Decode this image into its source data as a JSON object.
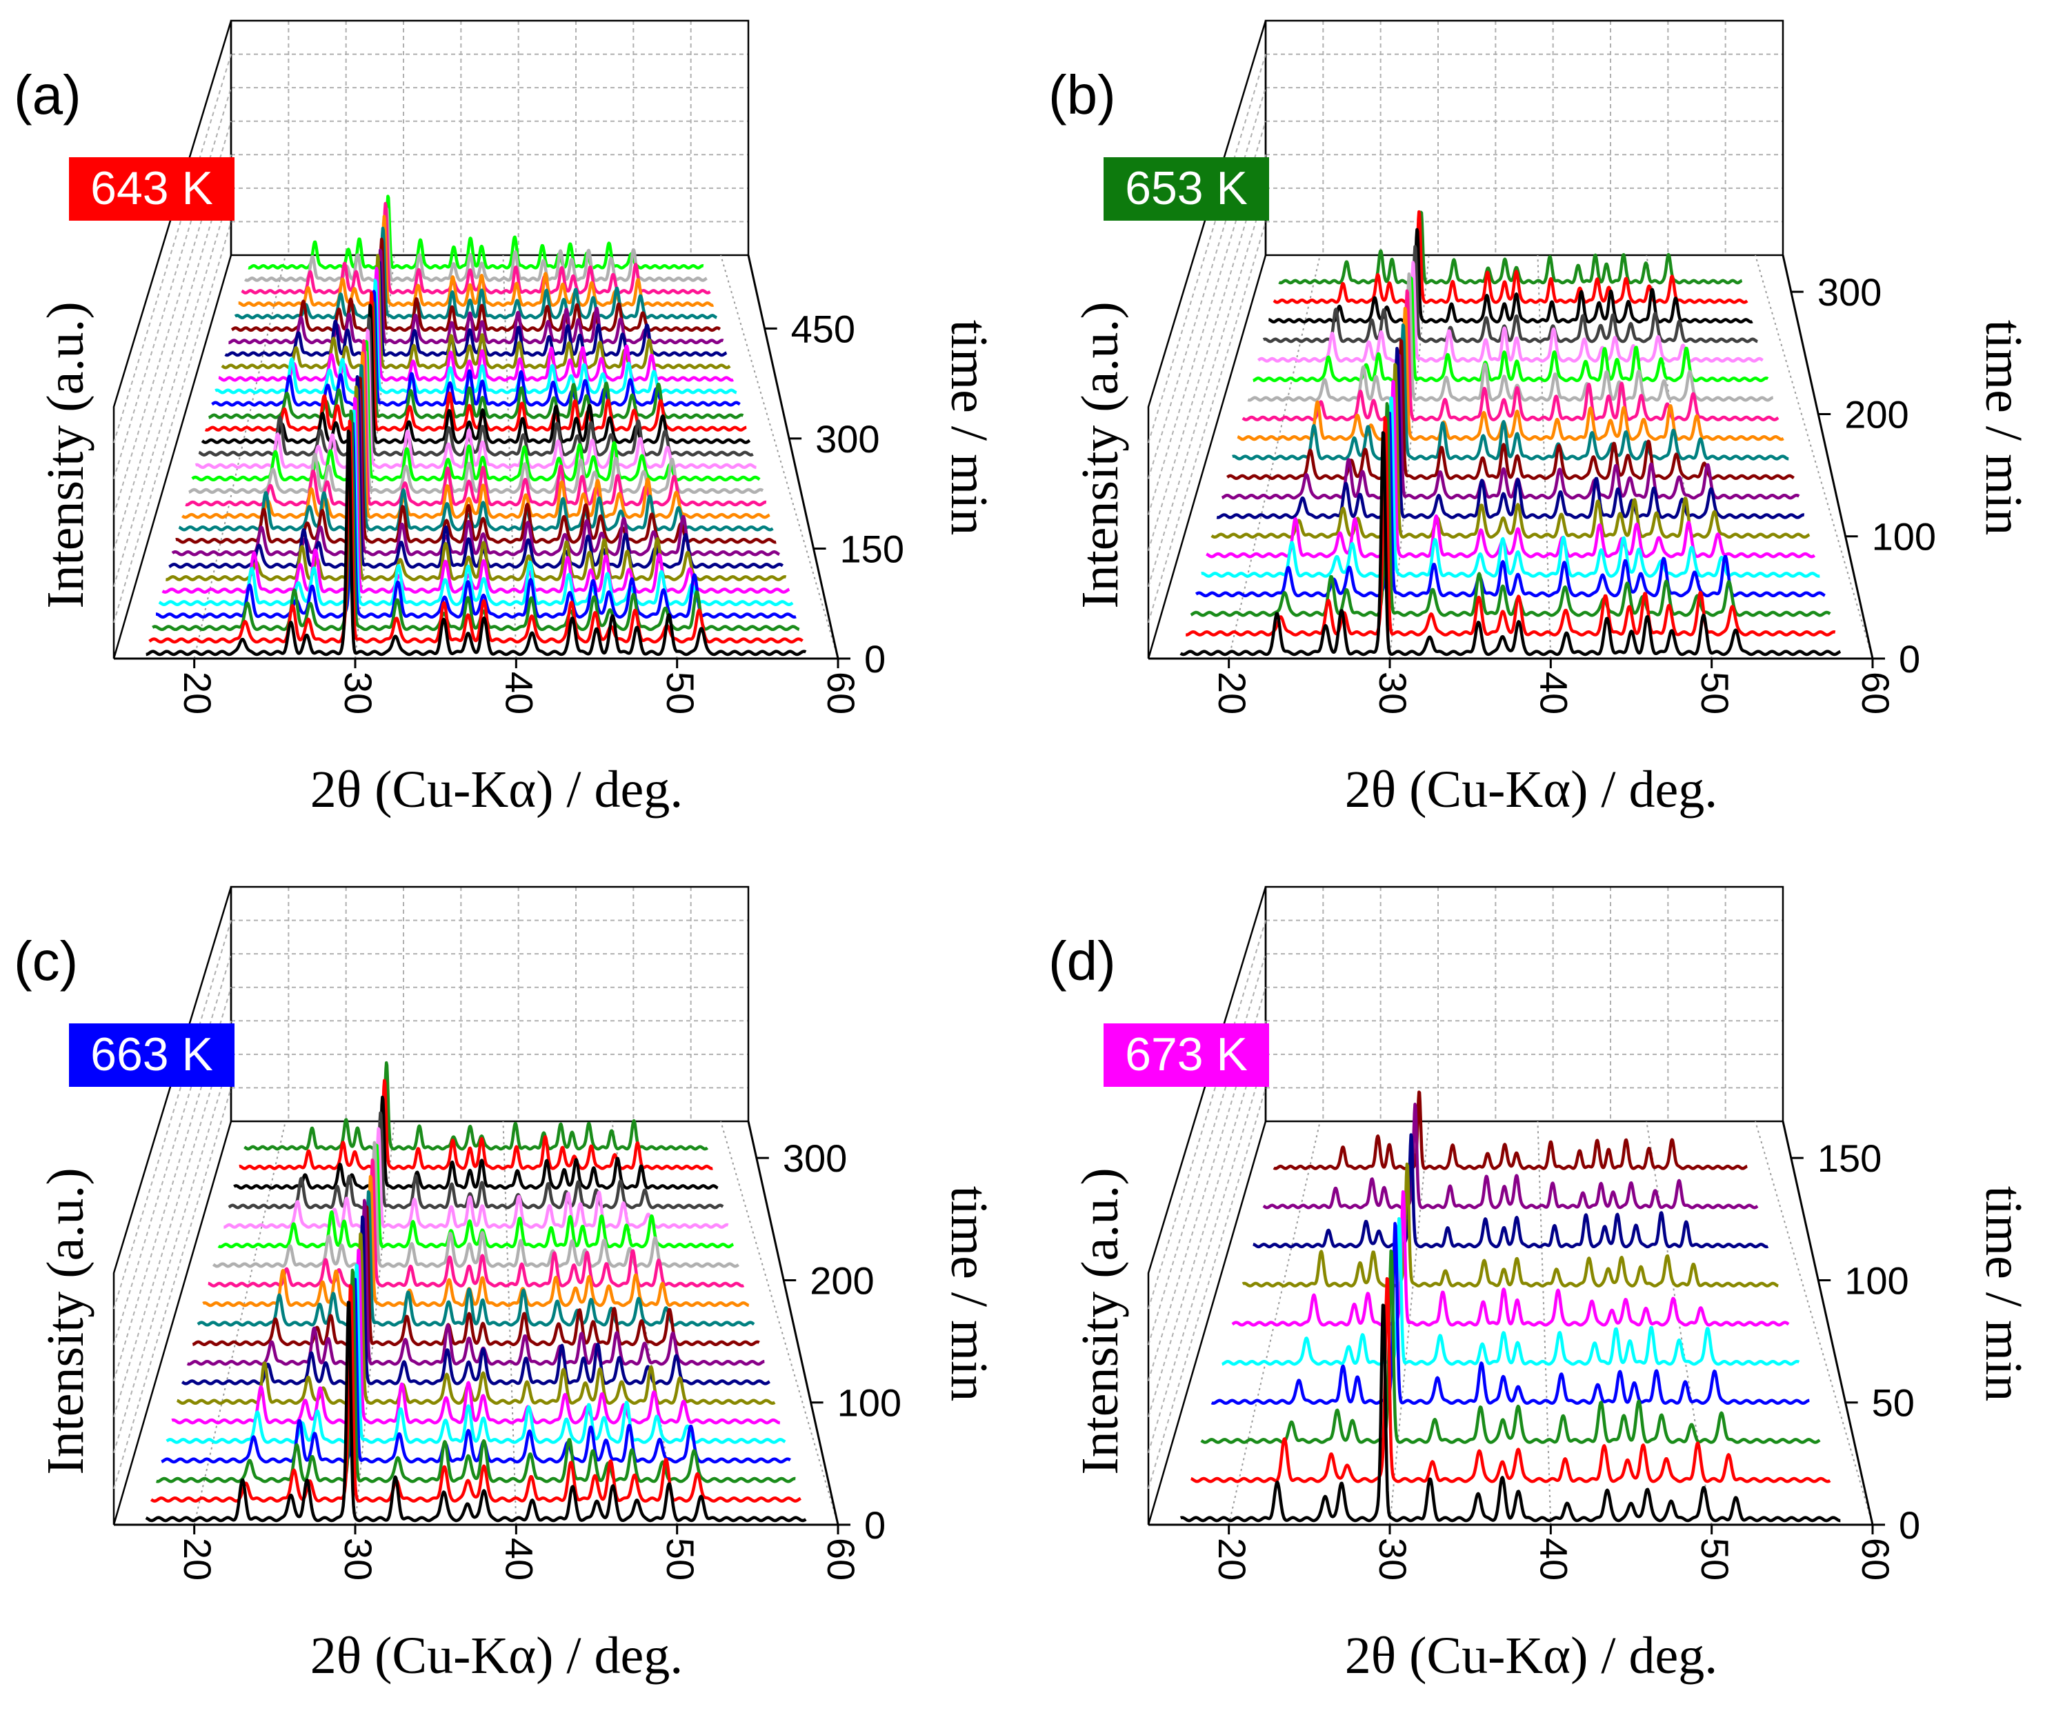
{
  "figure": {
    "x_axis_label": "2θ (Cu-Kα) / deg.",
    "y_axis_label": "Intensity (a.u.)",
    "time_axis_label": "time / min"
  },
  "chart_data": [
    {
      "type": "waterfall-line",
      "panel": "(a)",
      "temperature": "643 K",
      "temperature_color": "#ff0000",
      "xlabel": "2θ (Cu-Kα) / deg.",
      "ylabel": "Intensity (a.u.)",
      "zlabel": "time / min",
      "xlim": [
        15,
        60
      ],
      "x_ticks": [
        20,
        30,
        40,
        50,
        60
      ],
      "time_lim": [
        0,
        550
      ],
      "time_ticks": [
        0,
        150,
        300,
        450
      ],
      "series_count": 32,
      "time_step_min": 17,
      "peak_positions_deg": [
        23.0,
        26.0,
        27.0,
        29.5,
        32.5,
        35.5,
        37.0,
        38.0,
        41.0,
        43.5,
        45.0,
        46.0,
        47.5,
        49.5,
        51.5
      ],
      "main_peak_deg": 29.6
    },
    {
      "type": "waterfall-line",
      "panel": "(b)",
      "temperature": "653 K",
      "temperature_color": "#0d7a0d",
      "xlabel": "2θ (Cu-Kα) / deg.",
      "ylabel": "Intensity (a.u.)",
      "zlabel": "time / min",
      "xlim": [
        15,
        60
      ],
      "x_ticks": [
        20,
        30,
        40,
        50,
        60
      ],
      "time_lim": [
        0,
        330
      ],
      "time_ticks": [
        0,
        100,
        200,
        300
      ],
      "series_count": 20,
      "time_step_min": 16,
      "peak_positions_deg": [
        23.0,
        26.0,
        27.0,
        29.5,
        32.5,
        35.5,
        37.0,
        38.0,
        41.0,
        43.5,
        45.0,
        46.0,
        47.5,
        49.5,
        51.5
      ],
      "main_peak_deg": 29.6
    },
    {
      "type": "waterfall-line",
      "panel": "(c)",
      "temperature": "663 K",
      "temperature_color": "#0000ff",
      "xlabel": "2θ (Cu-Kα) / deg.",
      "ylabel": "Intensity (a.u.)",
      "zlabel": "time / min",
      "xlim": [
        15,
        60
      ],
      "x_ticks": [
        20,
        30,
        40,
        50,
        60
      ],
      "time_lim": [
        0,
        330
      ],
      "time_ticks": [
        0,
        100,
        200,
        300
      ],
      "series_count": 20,
      "time_step_min": 16,
      "peak_positions_deg": [
        23.0,
        26.0,
        27.0,
        29.5,
        32.5,
        35.5,
        37.0,
        38.0,
        41.0,
        43.5,
        45.0,
        46.0,
        47.5,
        49.5,
        51.5
      ],
      "main_peak_deg": 29.6
    },
    {
      "type": "waterfall-line",
      "panel": "(d)",
      "temperature": "673 K",
      "temperature_color": "#ff00ff",
      "xlabel": "2θ (Cu-Kα) / deg.",
      "ylabel": "Intensity (a.u.)",
      "zlabel": "time / min",
      "xlim": [
        15,
        60
      ],
      "x_ticks": [
        20,
        30,
        40,
        50,
        60
      ],
      "time_lim": [
        0,
        165
      ],
      "time_ticks": [
        0,
        50,
        100,
        150
      ],
      "series_count": 10,
      "time_step_min": 16,
      "peak_positions_deg": [
        23.0,
        26.0,
        27.0,
        29.5,
        32.5,
        35.5,
        37.0,
        38.0,
        41.0,
        43.5,
        45.0,
        46.0,
        47.5,
        49.5,
        51.5
      ],
      "main_peak_deg": 29.6
    }
  ],
  "series_colors": [
    "#000000",
    "#ff0000",
    "#1a8c1a",
    "#0000ff",
    "#00ffff",
    "#ff00ff",
    "#888800",
    "#000088",
    "#880088",
    "#880000",
    "#008080",
    "#ff8800",
    "#ff1493",
    "#b0b0b0",
    "#00ff00",
    "#ff88ff",
    "#404040"
  ]
}
